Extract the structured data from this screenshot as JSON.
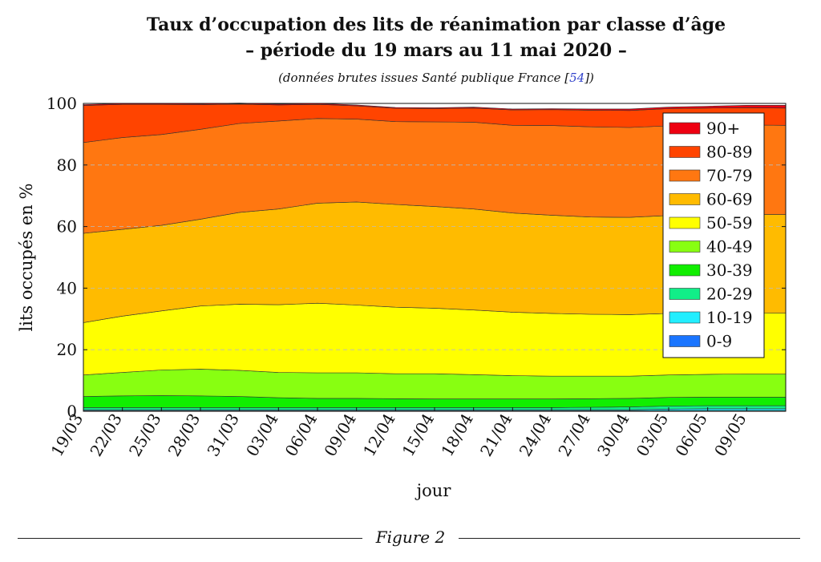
{
  "header": {
    "title_line1": "Taux d’occupation des lits de réanimation par classe d’âge",
    "title_line2": "– période du 19 mars au 11 mai 2020 –",
    "subtitle_prefix": "(données brutes issues Santé publique France [",
    "subtitle_ref": "54",
    "subtitle_suffix": "])"
  },
  "caption": "Figure 2",
  "chart_data": {
    "type": "area",
    "stacked": true,
    "xlabel": "jour",
    "ylabel": "lits occupés en %",
    "ylim": [
      0,
      100
    ],
    "yticks": [
      0,
      20,
      40,
      60,
      80,
      100
    ],
    "grid": "horizontal dashed",
    "legend_position": "top-right",
    "x_ticks": [
      "19/03",
      "22/03",
      "25/03",
      "28/03",
      "31/03",
      "03/04",
      "06/04",
      "09/04",
      "12/04",
      "15/04",
      "18/04",
      "21/04",
      "24/04",
      "27/04",
      "30/04",
      "03/05",
      "06/05",
      "09/05"
    ],
    "x": [
      "19/03",
      "22/03",
      "25/03",
      "28/03",
      "31/03",
      "03/04",
      "06/04",
      "09/04",
      "12/04",
      "15/04",
      "18/04",
      "21/04",
      "24/04",
      "27/04",
      "30/04",
      "03/05",
      "06/05",
      "09/05",
      "11/05"
    ],
    "series": [
      {
        "name": "0-9",
        "color": "#1a75ff",
        "values": [
          0.2,
          0.2,
          0.2,
          0.2,
          0.2,
          0.2,
          0.2,
          0.2,
          0.2,
          0.2,
          0.2,
          0.2,
          0.2,
          0.2,
          0.2,
          0.2,
          0.2,
          0.2,
          0.2
        ]
      },
      {
        "name": "10-19",
        "color": "#22eeff",
        "values": [
          0.3,
          0.3,
          0.3,
          0.3,
          0.3,
          0.3,
          0.3,
          0.3,
          0.3,
          0.3,
          0.3,
          0.3,
          0.3,
          0.3,
          0.3,
          0.5,
          0.6,
          0.6,
          0.6
        ]
      },
      {
        "name": "20-29",
        "color": "#11ee88",
        "values": [
          0.7,
          0.7,
          0.7,
          0.7,
          0.7,
          0.7,
          0.7,
          0.7,
          0.7,
          0.7,
          0.7,
          0.7,
          0.7,
          0.8,
          0.9,
          1.0,
          1.0,
          1.0,
          1.0
        ]
      },
      {
        "name": "30-39",
        "color": "#11ee00",
        "values": [
          3.6,
          3.8,
          3.9,
          3.8,
          3.6,
          3.2,
          3.0,
          3.0,
          2.9,
          2.8,
          2.8,
          2.8,
          2.8,
          2.8,
          2.8,
          2.8,
          2.8,
          2.8,
          2.8
        ]
      },
      {
        "name": "40-49",
        "color": "#88ff11",
        "values": [
          7.0,
          7.6,
          8.3,
          8.7,
          8.5,
          8.2,
          8.3,
          8.3,
          8.1,
          8.2,
          7.9,
          7.6,
          7.4,
          7.3,
          7.2,
          7.3,
          7.4,
          7.5,
          7.5
        ]
      },
      {
        "name": "50-59",
        "color": "#ffff00",
        "values": [
          17.0,
          18.3,
          19.2,
          20.5,
          21.5,
          22.0,
          22.6,
          22.0,
          21.6,
          21.3,
          21.0,
          20.6,
          20.4,
          20.1,
          20.0,
          20.0,
          19.9,
          19.9,
          19.8
        ]
      },
      {
        "name": "60-69",
        "color": "#ffbb00",
        "values": [
          29.0,
          28.2,
          27.8,
          28.2,
          29.8,
          31.1,
          32.5,
          33.5,
          33.4,
          33.0,
          32.8,
          32.2,
          31.9,
          31.6,
          31.6,
          31.8,
          32.0,
          32.0,
          32.0
        ]
      },
      {
        "name": "70-79",
        "color": "#ff7711",
        "values": [
          29.5,
          29.8,
          29.5,
          29.2,
          28.9,
          28.6,
          27.5,
          26.9,
          26.9,
          27.5,
          28.2,
          28.5,
          29.1,
          29.3,
          29.2,
          29.1,
          29.0,
          29.0,
          29.0
        ]
      },
      {
        "name": "80-89",
        "color": "#ff4400",
        "values": [
          12.0,
          10.8,
          9.8,
          8.0,
          6.3,
          5.2,
          4.6,
          4.3,
          4.3,
          4.3,
          4.6,
          5.0,
          5.2,
          5.4,
          5.5,
          5.6,
          5.6,
          5.6,
          5.6
        ]
      },
      {
        "name": "90+",
        "color": "#ee0011",
        "values": [
          0.3,
          0.3,
          0.3,
          0.3,
          0.3,
          0.3,
          0.3,
          0.3,
          0.3,
          0.3,
          0.3,
          0.3,
          0.3,
          0.4,
          0.5,
          0.5,
          0.6,
          0.8,
          0.9
        ]
      }
    ]
  }
}
